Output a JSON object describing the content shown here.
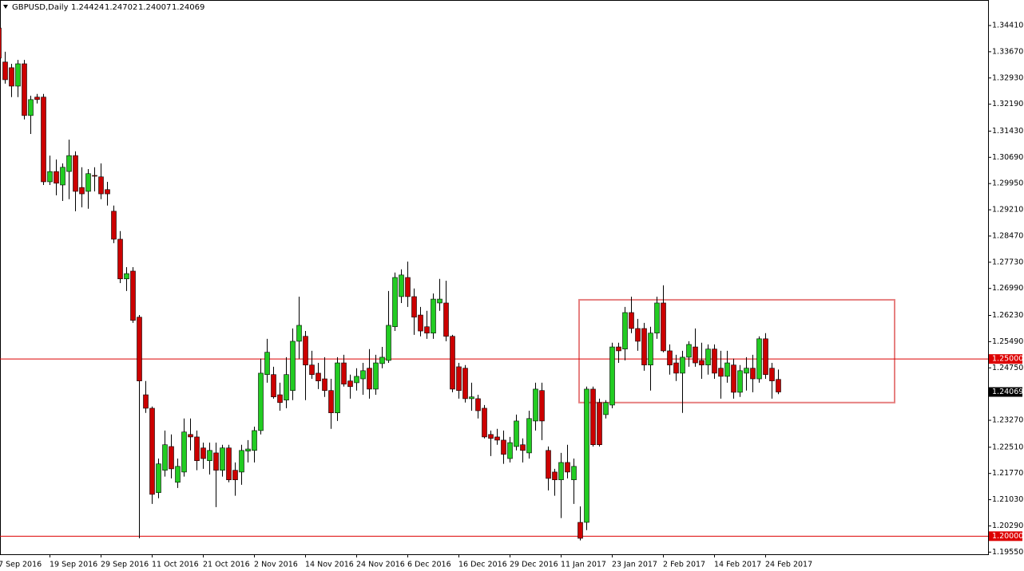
{
  "chart_data": {
    "type": "candlestick",
    "title": "GBPUSD,Daily",
    "categories": [
      "7 Sep 2016",
      null,
      null,
      null,
      null,
      null,
      null,
      null,
      "19 Sep 2016",
      null,
      null,
      null,
      null,
      null,
      null,
      null,
      "29 Sep 2016",
      null,
      null,
      null,
      null,
      null,
      null,
      null,
      "11 Oct 2016",
      null,
      null,
      null,
      null,
      null,
      null,
      null,
      "21 Oct 2016",
      null,
      null,
      null,
      null,
      null,
      null,
      null,
      "2 Nov 2016",
      null,
      null,
      null,
      null,
      null,
      null,
      null,
      "14 Nov 2016",
      null,
      null,
      null,
      null,
      null,
      null,
      null,
      "24 Nov 2016",
      null,
      null,
      null,
      null,
      null,
      null,
      null,
      "6 Dec 2016",
      null,
      null,
      null,
      null,
      null,
      null,
      null,
      "16 Dec 2016",
      null,
      null,
      null,
      null,
      null,
      null,
      null,
      "29 Dec 2016",
      null,
      null,
      null,
      null,
      null,
      null,
      null,
      "11 Jan 2017",
      null,
      null,
      null,
      null,
      null,
      null,
      null,
      "23 Jan 2017",
      null,
      null,
      null,
      null,
      null,
      null,
      null,
      "2 Feb 2017",
      null,
      null,
      null,
      null,
      null,
      null,
      null,
      "14 Feb 2017",
      null,
      null,
      null,
      null,
      null,
      null,
      null,
      "24 Feb 2017",
      null,
      null
    ],
    "open": [
      1.3434,
      1.3338,
      1.3322,
      1.327,
      1.3333,
      1.3187,
      1.3239,
      1.3239,
      1.3,
      1.3029,
      1.2991,
      1.3029,
      1.3074,
      1.2984,
      1.2973,
      1.3018,
      1.3014,
      1.2978,
      1.2917,
      1.2838,
      1.2726,
      1.2748,
      1.2618,
      1.2399,
      1.2361,
      1.2123,
      1.2186,
      1.2253,
      1.2152,
      1.2181,
      1.2287,
      1.228,
      1.2249,
      1.2213,
      1.2235,
      1.2186,
      1.2249,
      1.2186,
      1.2181,
      1.224,
      1.2242,
      1.2298,
      1.2456,
      1.2456,
      1.2399,
      1.2384,
      1.2411,
      1.255,
      1.2564,
      1.2483,
      1.246,
      1.2444,
      1.2411,
      1.2348,
      1.2489,
      1.2438,
      1.2433,
      1.2444,
      1.2474,
      1.2415,
      1.2487,
      1.2496,
      1.2591,
      1.2676,
      1.273,
      1.2676,
      1.2624,
      1.2591,
      1.2573,
      1.2658,
      1.2658,
      1.2564,
      1.2478,
      1.2474,
      1.2388,
      1.2388,
      1.2361,
      1.2287,
      1.228,
      1.2271,
      1.2219,
      1.2253,
      1.2258,
      1.2235,
      1.2325,
      1.2411,
      1.2242,
      1.2181,
      1.2159,
      1.2208,
      1.2159,
      1.2039,
      1.2039,
      1.2415,
      1.2377,
      1.2343,
      1.237,
      1.2534,
      1.2528,
      1.2631,
      1.2586,
      1.2586,
      1.2483,
      1.2573,
      1.2658,
      1.2523,
      1.2489,
      1.246,
      1.2505,
      1.2534,
      1.2496,
      1.2483,
      1.2528,
      1.2474,
      1.2451,
      1.2483,
      1.2406,
      1.246,
      1.2474,
      1.2444,
      1.2557,
      1.2474,
      1.24424
    ],
    "high": [
      1.3441,
      1.3367,
      1.3333,
      1.3344,
      1.3344,
      1.3243,
      1.3248,
      1.3248,
      1.3074,
      1.3063,
      1.3052,
      1.3119,
      1.3086,
      1.3041,
      1.3036,
      1.3041,
      1.3052,
      1.3,
      1.2933,
      1.2861,
      1.2759,
      1.2759,
      1.2624,
      1.2438,
      1.2366,
      1.2219,
      1.2298,
      1.2287,
      1.2219,
      1.2332,
      1.2332,
      1.2298,
      1.2264,
      1.2264,
      1.2264,
      1.2258,
      1.2258,
      1.2208,
      1.2258,
      1.2271,
      1.2309,
      1.2501,
      1.2557,
      1.2478,
      1.2433,
      1.2505,
      1.2586,
      1.2676,
      1.2579,
      1.2523,
      1.2489,
      1.2505,
      1.2444,
      1.2505,
      1.2512,
      1.2456,
      1.2474,
      1.2489,
      1.2528,
      1.2512,
      1.2534,
      1.2692,
      1.2744,
      1.2753,
      1.2775,
      1.2699,
      1.2647,
      1.2636,
      1.2685,
      1.2726,
      1.2721,
      1.2568,
      1.2489,
      1.2483,
      1.2433,
      1.2399,
      1.237,
      1.2298,
      1.2303,
      1.2298,
      1.228,
      1.2343,
      1.2276,
      1.2354,
      1.2433,
      1.2433,
      1.2253,
      1.219,
      1.2235,
      1.2258,
      1.2219,
      1.2084,
      1.2422,
      1.2422,
      1.2388,
      1.2384,
      1.2546,
      1.2546,
      1.2647,
      1.2676,
      1.2613,
      1.2602,
      1.2591,
      1.2676,
      1.2708,
      1.2541,
      1.2512,
      1.2523,
      1.255,
      1.2586,
      1.2546,
      1.2541,
      1.2541,
      1.2523,
      1.2523,
      1.2501,
      1.2483,
      1.2505,
      1.2512,
      1.2564,
      1.2573,
      1.2489,
      1.24702
    ],
    "low": [
      1.3344,
      1.3277,
      1.3239,
      1.3239,
      1.3176,
      1.3135,
      1.3221,
      1.2991,
      1.2991,
      1.2962,
      1.2946,
      1.2951,
      1.2917,
      1.2928,
      1.2924,
      1.2973,
      1.2951,
      1.2933,
      1.2827,
      1.2714,
      1.2692,
      1.2602,
      1.1994,
      1.2348,
      1.2091,
      1.2107,
      1.2168,
      1.2163,
      1.2136,
      1.2168,
      1.2242,
      1.2186,
      1.219,
      1.2174,
      1.2082,
      1.2168,
      1.2152,
      1.2114,
      1.2145,
      1.2208,
      1.2208,
      1.2287,
      1.2433,
      1.2388,
      1.2354,
      1.2361,
      1.2384,
      1.2501,
      1.2384,
      1.2444,
      1.2415,
      1.2393,
      1.2303,
      1.2325,
      1.2422,
      1.2388,
      1.2411,
      1.2399,
      1.2388,
      1.2399,
      1.2474,
      1.2489,
      1.2579,
      1.2658,
      1.2647,
      1.2568,
      1.2564,
      1.2557,
      1.2557,
      1.2636,
      1.255,
      1.2406,
      1.2388,
      1.2377,
      1.2354,
      1.2332,
      1.2276,
      1.2226,
      1.2258,
      1.2204,
      1.2208,
      1.2242,
      1.2208,
      1.2219,
      1.2298,
      1.2271,
      1.2129,
      1.2114,
      1.2051,
      1.2163,
      1.2091,
      1.1988,
      1.2017,
      1.2253,
      1.2253,
      1.2332,
      1.2361,
      1.2489,
      1.2496,
      1.2573,
      1.2523,
      1.2467,
      1.2411,
      1.2557,
      1.2519,
      1.2456,
      1.2438,
      1.2348,
      1.2478,
      1.2478,
      1.2444,
      1.2456,
      1.2444,
      1.2388,
      1.2433,
      1.2388,
      1.2393,
      1.2411,
      1.2406,
      1.2433,
      1.2444,
      1.2388,
      1.24007
    ],
    "close": [
      1.3349,
      1.3288,
      1.327,
      1.3333,
      1.3187,
      1.3232,
      1.3232,
      1.3,
      1.3029,
      1.2996,
      1.3041,
      1.3074,
      1.2973,
      1.2966,
      1.3023,
      1.3016,
      1.2966,
      1.2966,
      1.2838,
      1.2726,
      1.2741,
      1.2609,
      1.2438,
      1.2361,
      1.2118,
      1.2204,
      1.2258,
      1.219,
      1.2197,
      1.2294,
      1.228,
      1.2213,
      1.2219,
      1.2242,
      1.2186,
      1.2249,
      1.2159,
      1.2159,
      1.2242,
      1.2246,
      1.2298,
      1.246,
      1.2519,
      1.2393,
      1.2377,
      1.2456,
      1.255,
      1.2595,
      1.2483,
      1.2456,
      1.2438,
      1.2411,
      1.2348,
      1.2489,
      1.2429,
      1.2422,
      1.2451,
      1.2467,
      1.2415,
      1.2489,
      1.2505,
      1.2595,
      1.273,
      1.2737,
      1.2676,
      1.2618,
      1.2579,
      1.2573,
      1.2669,
      1.2669,
      1.2564,
      1.2415,
      1.2411,
      1.2388,
      1.2393,
      1.2354,
      1.228,
      1.2276,
      1.2271,
      1.2231,
      1.2264,
      1.2325,
      1.2242,
      1.2332,
      1.2415,
      1.2325,
      1.2163,
      1.2159,
      1.2208,
      1.2181,
      1.2197,
      1.1994,
      1.2415,
      1.2258,
      1.2258,
      1.2377,
      1.2534,
      1.2523,
      1.2631,
      1.2586,
      1.255,
      1.2483,
      1.2573,
      1.2658,
      1.2523,
      1.2483,
      1.246,
      1.2505,
      1.2541,
      1.2489,
      1.2483,
      1.2528,
      1.246,
      1.2451,
      1.2489,
      1.2406,
      1.2467,
      1.2474,
      1.2444,
      1.2557,
      1.2456,
      1.2438,
      1.24069
    ],
    "up_color": "#22cc22",
    "down_color": "#cc0000",
    "wick_color": "#000000",
    "ylim": [
      1.1949,
      1.3513
    ],
    "yticks": [
      {
        "value": 1.3441,
        "label": "1.34410"
      },
      {
        "value": 1.3367,
        "label": "1.33670"
      },
      {
        "value": 1.3293,
        "label": "1.32930"
      },
      {
        "value": 1.3219,
        "label": "1.32190"
      },
      {
        "value": 1.3143,
        "label": "1.31430"
      },
      {
        "value": 1.3069,
        "label": "1.30690"
      },
      {
        "value": 1.2995,
        "label": "1.29950"
      },
      {
        "value": 1.2921,
        "label": "1.29210"
      },
      {
        "value": 1.2847,
        "label": "1.28470"
      },
      {
        "value": 1.2773,
        "label": "1.27730"
      },
      {
        "value": 1.2699,
        "label": "1.26990"
      },
      {
        "value": 1.2623,
        "label": "1.26230"
      },
      {
        "value": 1.2549,
        "label": "1.25490"
      },
      {
        "value": 1.2475,
        "label": "1.24750"
      },
      {
        "value": 1.2327,
        "label": "1.23270"
      },
      {
        "value": 1.2251,
        "label": "1.22510"
      },
      {
        "value": 1.2177,
        "label": "1.21770"
      },
      {
        "value": 1.2103,
        "label": "1.21030"
      },
      {
        "value": 1.2029,
        "label": "1.20290"
      },
      {
        "value": 1.1955,
        "label": "1.19550"
      }
    ],
    "hlines": [
      {
        "value": 1.25,
        "label": "1.25000",
        "color": "#dd0000"
      },
      {
        "value": 1.2,
        "label": "1.20000",
        "color": "#dd0000"
      }
    ],
    "rectangle": {
      "top": 1.2667,
      "bottom": 1.2377,
      "color": "#e06060"
    },
    "grid": false
  }
}
